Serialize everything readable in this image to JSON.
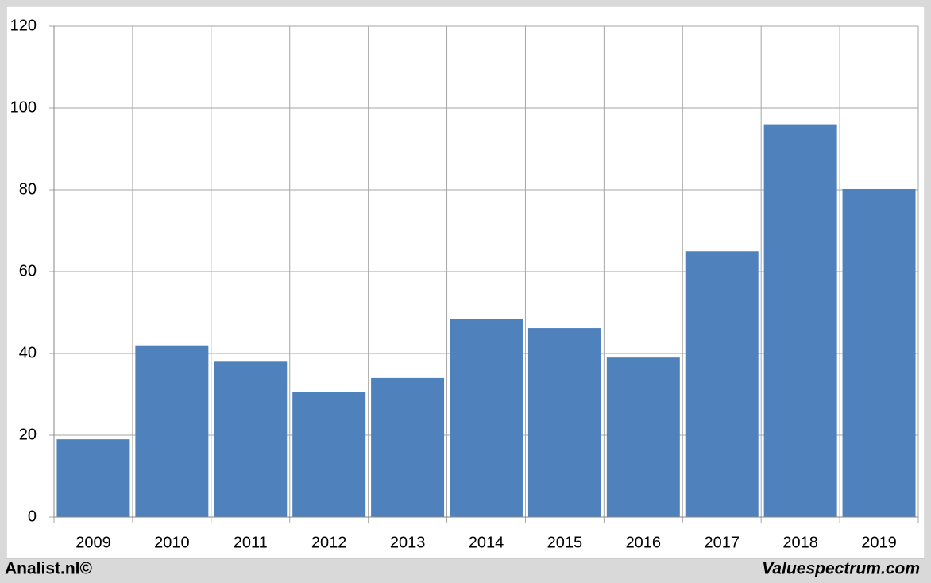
{
  "chart_data": {
    "type": "bar",
    "categories": [
      "2009",
      "2010",
      "2011",
      "2012",
      "2013",
      "2014",
      "2015",
      "2016",
      "2017",
      "2018",
      "2019"
    ],
    "values": [
      19,
      42,
      38,
      30.5,
      34,
      48.5,
      46.2,
      39,
      65,
      96,
      80.2
    ],
    "color": "#4f81bd",
    "ylim": [
      0,
      120
    ],
    "yticks": [
      0,
      20,
      40,
      60,
      80,
      100,
      120
    ],
    "grid": true
  },
  "footer": {
    "left": "Analist.nl©",
    "right": "Valuespectrum.com"
  }
}
